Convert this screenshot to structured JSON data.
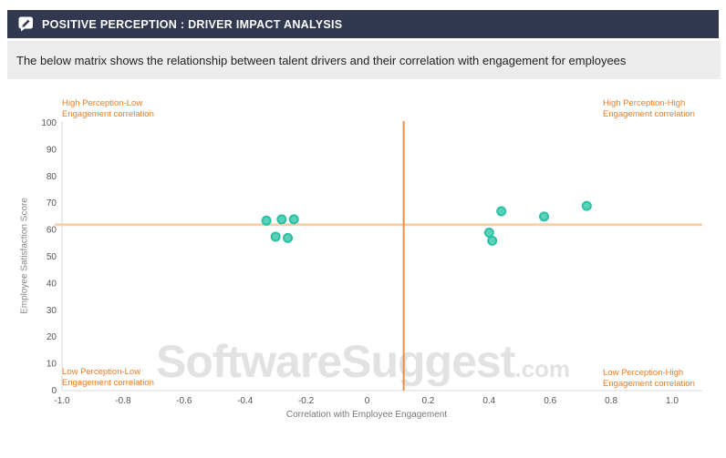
{
  "header": {
    "title": "POSITIVE PERCEPTION : DRIVER IMPACT ANALYSIS",
    "icon": "compose-icon"
  },
  "subtitle": "The below matrix shows the relationship between talent drivers and their correlation with engagement for employees",
  "watermark": {
    "main": "SoftwareSuggest",
    "suffix": ".com"
  },
  "quadrants": {
    "top_left": {
      "line1": "High Perception-Low",
      "line2": "Engagement correlation"
    },
    "top_right": {
      "line1": "High Perception-High",
      "line2": "Engagement correlation"
    },
    "bottom_left": {
      "line1": "Low Perception-Low",
      "line2": "Engagement correlation"
    },
    "bottom_right": {
      "line1": "Low Perception-High",
      "line2": "Engagement correlation"
    }
  },
  "chart_data": {
    "type": "scatter",
    "title": "POSITIVE PERCEPTION : DRIVER IMPACT ANALYSIS",
    "xlabel": "Correlation with Employee Engagement",
    "ylabel": "Employee Satisfaction Score",
    "xlim": [
      -1.0,
      1.0
    ],
    "ylim": [
      0,
      100
    ],
    "xticks": [
      {
        "v": -1.0,
        "label": "-1.0"
      },
      {
        "v": -0.8,
        "label": "-0.8"
      },
      {
        "v": -0.6,
        "label": "-0.6"
      },
      {
        "v": -0.4,
        "label": "-0.4"
      },
      {
        "v": -0.2,
        "label": "-0.2"
      },
      {
        "v": 0,
        "label": "0"
      },
      {
        "v": 0.2,
        "label": "0.2"
      },
      {
        "v": 0.4,
        "label": "0.4"
      },
      {
        "v": 0.6,
        "label": "0.6"
      },
      {
        "v": 0.8,
        "label": "0.8"
      },
      {
        "v": 1.0,
        "label": "1.0"
      }
    ],
    "yticks": [
      0,
      10,
      20,
      30,
      40,
      50,
      60,
      70,
      80,
      90,
      100
    ],
    "grid": false,
    "legend": false,
    "points": [
      [
        -0.33,
        63.5
      ],
      [
        -0.28,
        64
      ],
      [
        -0.24,
        64
      ],
      [
        -0.3,
        57.5
      ],
      [
        -0.26,
        57
      ],
      [
        0.44,
        67
      ],
      [
        0.58,
        65
      ],
      [
        0.72,
        69
      ],
      [
        0.4,
        59
      ],
      [
        0.41,
        56
      ]
    ],
    "ref_lines": {
      "x": 0.12,
      "y": 62
    },
    "colors": {
      "point_fill": "#5bd1b9",
      "point_stroke": "#2cc0a5",
      "ref_line_horizontal": "#f8d0a8",
      "ref_line_vertical": "#ef8d3d",
      "axis": "#d9d9d9",
      "quadrant_label": "#ee7b22",
      "header_bg": "#323850",
      "watermark": "#e2e2e2"
    }
  }
}
